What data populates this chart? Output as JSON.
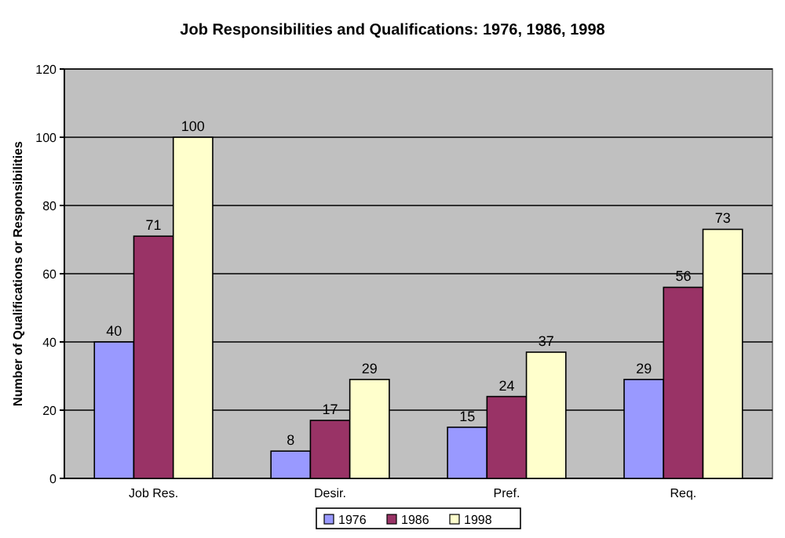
{
  "chart_data": {
    "type": "bar",
    "title": "Job Responsibilities and Qualifications: 1976, 1986, 1998",
    "ylabel": "Number of Qualifications or Responsibilities",
    "categories": [
      "Job Res.",
      "Desir.",
      "Pref.",
      "Req."
    ],
    "series": [
      {
        "name": "1976",
        "color": "#9999ff",
        "values": [
          40,
          8,
          15,
          29
        ]
      },
      {
        "name": "1986",
        "color": "#993366",
        "values": [
          71,
          17,
          24,
          56
        ]
      },
      {
        "name": "1998",
        "color": "#ffffcc",
        "values": [
          100,
          29,
          37,
          73
        ]
      }
    ],
    "ylim": [
      0,
      120
    ],
    "yticks": [
      0,
      20,
      40,
      60,
      80,
      100,
      120
    ],
    "grid": "y",
    "legend": "bottom",
    "data_labels": true
  }
}
